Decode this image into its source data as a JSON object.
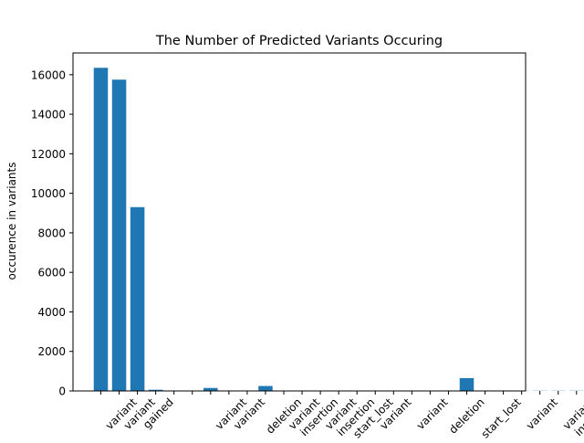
{
  "chart_data": {
    "type": "bar",
    "title": "The Number of Predicted Variants Occuring",
    "xlabel": "",
    "ylabel": "occurence in variants",
    "ylim": [
      0,
      17100
    ],
    "yticks": [
      0,
      2000,
      4000,
      6000,
      8000,
      10000,
      12000,
      14000,
      16000
    ],
    "ytick_labels": [
      "0",
      "2000",
      "4000",
      "6000",
      "8000",
      "10000",
      "12000",
      "14000",
      "16000"
    ],
    "bar_color": "#1f77b4",
    "grid": false,
    "categories": [
      "",
      "",
      "variant",
      "variant",
      "gained",
      "",
      "",
      "",
      "variant",
      "variant",
      "",
      "deletion",
      "variant",
      "insertion",
      "variant",
      "insertion",
      "start_lost",
      "variant",
      "",
      "variant",
      "",
      "deletion",
      "",
      "start_lost",
      "",
      "variant",
      "",
      "variant",
      "insertion",
      "gained",
      "gained"
    ],
    "values": [
      16350,
      15750,
      9300,
      60,
      20,
      10,
      150,
      10,
      10,
      250,
      10,
      10,
      10,
      10,
      10,
      10,
      10,
      10,
      10,
      10,
      650,
      10,
      10,
      10,
      10,
      10,
      10,
      10,
      10,
      10,
      10
    ]
  }
}
